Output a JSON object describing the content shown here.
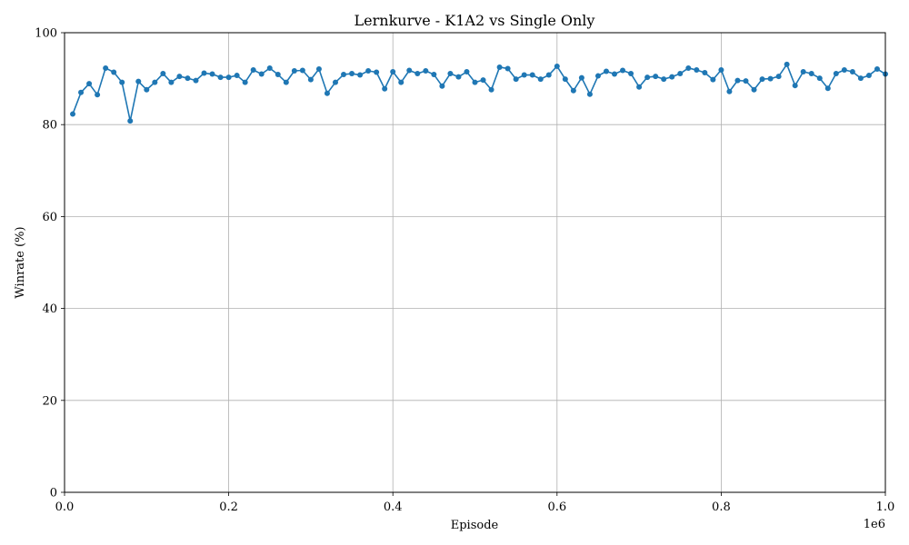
{
  "chart_data": {
    "type": "line",
    "title": "Lernkurve - K1A2 vs Single Only",
    "xlabel": "Episode",
    "ylabel": "Winrate (%)",
    "x_offset_label": "1e6",
    "xlim": [
      0,
      1
    ],
    "ylim": [
      0,
      100
    ],
    "x_ticks": [
      "0.0",
      "0.2",
      "0.4",
      "0.6",
      "0.8",
      "1.0"
    ],
    "y_ticks": [
      "0",
      "20",
      "40",
      "60",
      "80",
      "100"
    ],
    "grid": true,
    "color": "#1f77b4",
    "series": [
      {
        "x": [
          0.01,
          0.02,
          0.03,
          0.04,
          0.05,
          0.06,
          0.07,
          0.08,
          0.09,
          0.1,
          0.11,
          0.12,
          0.13,
          0.14,
          0.15,
          0.16,
          0.17,
          0.18,
          0.19,
          0.2,
          0.21,
          0.22,
          0.23,
          0.24,
          0.25,
          0.26,
          0.27,
          0.28,
          0.29,
          0.3,
          0.31,
          0.32,
          0.33,
          0.34,
          0.35,
          0.36,
          0.37,
          0.38,
          0.39,
          0.4,
          0.41,
          0.42,
          0.43,
          0.44,
          0.45,
          0.46,
          0.47,
          0.48,
          0.49,
          0.5,
          0.51,
          0.52,
          0.53,
          0.54,
          0.55,
          0.56,
          0.57,
          0.58,
          0.59,
          0.6,
          0.61,
          0.62,
          0.63,
          0.64,
          0.65,
          0.66,
          0.67,
          0.68,
          0.69,
          0.7,
          0.71,
          0.72,
          0.73,
          0.74,
          0.75,
          0.76,
          0.77,
          0.78,
          0.79,
          0.8,
          0.81,
          0.82,
          0.83,
          0.84,
          0.85,
          0.86,
          0.87,
          0.88,
          0.89,
          0.9,
          0.91,
          0.92,
          0.93,
          0.94,
          0.95,
          0.96,
          0.97,
          0.98,
          0.99,
          1.0
        ],
        "y": [
          82.3,
          87.0,
          88.9,
          86.5,
          92.3,
          91.4,
          89.2,
          80.8,
          89.4,
          87.6,
          89.2,
          91.1,
          89.2,
          90.5,
          90.1,
          89.6,
          91.2,
          91.0,
          90.3,
          90.3,
          90.7,
          89.2,
          91.9,
          91.0,
          92.3,
          90.9,
          89.2,
          91.7,
          91.8,
          89.8,
          92.1,
          86.8,
          89.2,
          90.9,
          91.1,
          90.8,
          91.7,
          91.4,
          87.8,
          91.5,
          89.2,
          91.8,
          91.1,
          91.7,
          90.9,
          88.4,
          91.1,
          90.4,
          91.5,
          89.2,
          89.7,
          87.6,
          92.5,
          92.2,
          89.9,
          90.8,
          90.8,
          89.9,
          90.8,
          92.7,
          89.9,
          87.4,
          90.2,
          86.6,
          90.6,
          91.6,
          91.0,
          91.8,
          91.1,
          88.2,
          90.3,
          90.5,
          89.9,
          90.4,
          91.1,
          92.3,
          91.9,
          91.3,
          89.8,
          91.9,
          87.2,
          89.6,
          89.5,
          87.6,
          89.9,
          90.0,
          90.5,
          93.1,
          88.5,
          91.5,
          91.1,
          90.1,
          87.9,
          91.1,
          91.9,
          91.5,
          90.1,
          90.7,
          92.1,
          91.0
        ]
      }
    ]
  }
}
